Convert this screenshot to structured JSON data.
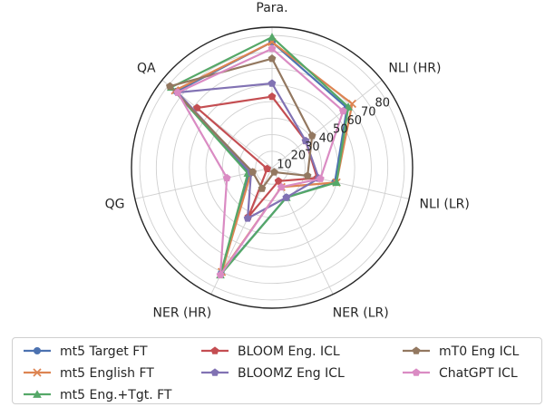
{
  "chart_data": {
    "type": "radar",
    "axes": [
      "Para.",
      "NLI (HR)",
      "NLI (LR)",
      "NER (LR)",
      "NER (HR)",
      "QG",
      "QA"
    ],
    "radial_ticks": [
      10,
      20,
      30,
      40,
      50,
      60,
      70,
      80
    ],
    "rlim": [
      0,
      85
    ],
    "grid": true,
    "legend_position": "bottom",
    "series": [
      {
        "name": "mt5 Target FT",
        "color": "#4c72b0",
        "marker": "circle",
        "values": [
          76,
          58,
          39,
          20,
          71,
          14,
          74
        ]
      },
      {
        "name": "mt5 English FT",
        "color": "#dd8452",
        "marker": "x",
        "values": [
          76,
          62,
          40,
          13,
          70,
          13,
          75
        ]
      },
      {
        "name": "mt5 Eng.+Tgt. FT",
        "color": "#55a868",
        "marker": "triangle",
        "values": [
          79,
          59,
          40,
          20,
          72,
          15,
          78
        ]
      },
      {
        "name": "BLOOM Eng. ICL",
        "color": "#c44e52",
        "marker": "pentagon",
        "values": [
          43,
          26,
          28,
          9,
          33,
          3,
          58
        ]
      },
      {
        "name": "BLOOMZ Eng ICL",
        "color": "#8172b3",
        "marker": "pentagon",
        "values": [
          51,
          26,
          29,
          20,
          34,
          13,
          73
        ]
      },
      {
        "name": "mT0 Eng ICL",
        "color": "#937860",
        "marker": "pentagon",
        "values": [
          66,
          31,
          22,
          3,
          14,
          12,
          79
        ]
      },
      {
        "name": "ChatGPT ICL",
        "color": "#da8bc3",
        "marker": "pentagon",
        "values": [
          72,
          55,
          30,
          13,
          72,
          28,
          73
        ]
      }
    ]
  }
}
